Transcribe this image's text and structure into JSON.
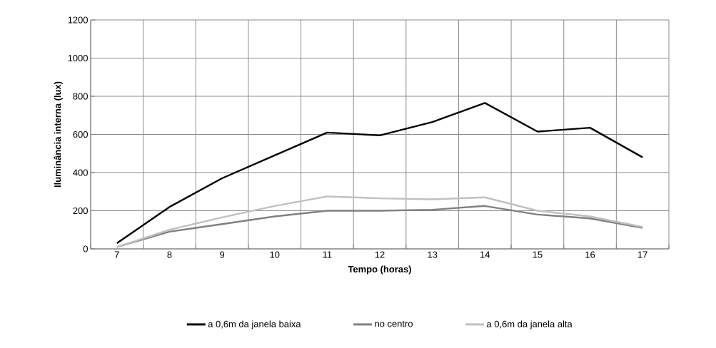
{
  "chart_data": {
    "type": "line",
    "xlabel": "Tempo (horas)",
    "ylabel": "Iluminância interna (lux)",
    "categories": [
      "7",
      "8",
      "9",
      "10",
      "11",
      "12",
      "13",
      "14",
      "15",
      "16",
      "17"
    ],
    "series": [
      {
        "name": "a 0,6m da janela baixa",
        "color": "#000000",
        "values": [
          30,
          220,
          370,
          490,
          610,
          595,
          665,
          765,
          615,
          635,
          480
        ]
      },
      {
        "name": "no centro",
        "color": "#808080",
        "values": [
          10,
          90,
          130,
          170,
          200,
          200,
          205,
          225,
          180,
          160,
          110
        ]
      },
      {
        "name": "a 0,6m da janela alta",
        "color": "#c0c0c0",
        "values": [
          10,
          100,
          165,
          225,
          275,
          265,
          260,
          270,
          200,
          170,
          115
        ]
      }
    ],
    "ylim": [
      0,
      1200
    ],
    "yticks": [
      0,
      200,
      400,
      600,
      800,
      1000,
      1200
    ],
    "grid": true,
    "legend": "bottom",
    "marker": "none",
    "line_style": "solid"
  }
}
